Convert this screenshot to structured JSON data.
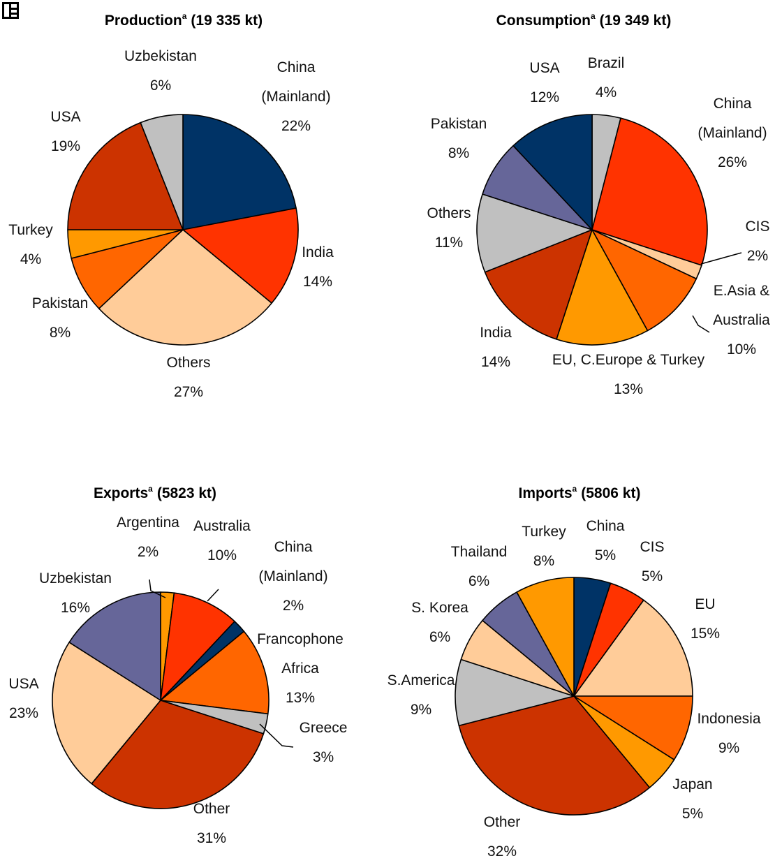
{
  "chart_data": [
    {
      "type": "pie",
      "title": "Production",
      "title_superscript": "a",
      "title_total": "(19 335 kt)",
      "slices": [
        {
          "name": "China (Mainland)",
          "label_lines": [
            "China",
            "(Mainland)"
          ],
          "pct_text": "22%",
          "value": 22,
          "color": "#003366"
        },
        {
          "name": "India",
          "label_lines": [
            "India"
          ],
          "pct_text": "14%",
          "value": 14,
          "color": "#ff3300"
        },
        {
          "name": "Others",
          "label_lines": [
            "Others"
          ],
          "pct_text": "27%",
          "value": 27,
          "color": "#ffcc99"
        },
        {
          "name": "Pakistan",
          "label_lines": [
            "Pakistan"
          ],
          "pct_text": "8%",
          "value": 8,
          "color": "#ff6600"
        },
        {
          "name": "Turkey",
          "label_lines": [
            "Turkey"
          ],
          "pct_text": "4%",
          "value": 4,
          "color": "#ff9900"
        },
        {
          "name": "USA",
          "label_lines": [
            "USA"
          ],
          "pct_text": "19%",
          "value": 19,
          "color": "#cc3300"
        },
        {
          "name": "Uzbekistan",
          "label_lines": [
            "Uzbekistan"
          ],
          "pct_text": "6%",
          "value": 6,
          "color": "#c0c0c0"
        }
      ]
    },
    {
      "type": "pie",
      "title": "Consumption",
      "title_superscript": "a",
      "title_total": "(19 349 kt)",
      "slices": [
        {
          "name": "Brazil",
          "label_lines": [
            "Brazil"
          ],
          "pct_text": "4%",
          "value": 4,
          "color": "#c0c0c0"
        },
        {
          "name": "China (Mainland)",
          "label_lines": [
            "China",
            "(Mainland)"
          ],
          "pct_text": "26%",
          "value": 26,
          "color": "#ff3300"
        },
        {
          "name": "CIS",
          "label_lines": [
            "CIS"
          ],
          "pct_text": "2%",
          "value": 2,
          "color": "#ffcc99"
        },
        {
          "name": "E.Asia & Australia",
          "label_lines": [
            "E.Asia &",
            "Australia"
          ],
          "pct_text": "10%",
          "value": 10,
          "color": "#ff6600"
        },
        {
          "name": "EU, C.Europe & Turkey",
          "label_lines": [
            "EU, C.Europe & Turkey"
          ],
          "pct_text": "13%",
          "value": 13,
          "color": "#ff9900"
        },
        {
          "name": "India",
          "label_lines": [
            "India"
          ],
          "pct_text": "14%",
          "value": 14,
          "color": "#cc3300"
        },
        {
          "name": "Others",
          "label_lines": [
            "Others"
          ],
          "pct_text": "11%",
          "value": 11,
          "color": "#c0c0c0"
        },
        {
          "name": "Pakistan",
          "label_lines": [
            "Pakistan"
          ],
          "pct_text": "8%",
          "value": 8,
          "color": "#666699"
        },
        {
          "name": "USA",
          "label_lines": [
            "USA"
          ],
          "pct_text": "12%",
          "value": 12,
          "color": "#003366"
        }
      ]
    },
    {
      "type": "pie",
      "title": "Exports",
      "title_superscript": "a",
      "title_total": "(5823 kt)",
      "slices": [
        {
          "name": "Argentina",
          "label_lines": [
            "Argentina"
          ],
          "pct_text": "2%",
          "value": 2,
          "color": "#ff9900"
        },
        {
          "name": "Australia",
          "label_lines": [
            "Australia"
          ],
          "pct_text": "10%",
          "value": 10,
          "color": "#ff3300"
        },
        {
          "name": "China (Mainland)",
          "label_lines": [
            "China",
            "(Mainland)"
          ],
          "pct_text": "2%",
          "value": 2,
          "color": "#003366"
        },
        {
          "name": "Francophone Africa",
          "label_lines": [
            "Francophone",
            "Africa"
          ],
          "pct_text": "13%",
          "value": 13,
          "color": "#ff6600"
        },
        {
          "name": "Greece",
          "label_lines": [
            "Greece"
          ],
          "pct_text": "3%",
          "value": 3,
          "color": "#c0c0c0"
        },
        {
          "name": "Other",
          "label_lines": [
            "Other"
          ],
          "pct_text": "31%",
          "value": 31,
          "color": "#cc3300"
        },
        {
          "name": "USA",
          "label_lines": [
            "USA"
          ],
          "pct_text": "23%",
          "value": 23,
          "color": "#ffcc99"
        },
        {
          "name": "Uzbekistan",
          "label_lines": [
            "Uzbekistan"
          ],
          "pct_text": "16%",
          "value": 16,
          "color": "#666699"
        }
      ]
    },
    {
      "type": "pie",
      "title": "Imports",
      "title_superscript": "a",
      "title_total": "(5806 kt)",
      "slices": [
        {
          "name": "China",
          "label_lines": [
            "China"
          ],
          "pct_text": "5%",
          "value": 5,
          "color": "#003366"
        },
        {
          "name": "CIS",
          "label_lines": [
            "CIS"
          ],
          "pct_text": "5%",
          "value": 5,
          "color": "#ff3300"
        },
        {
          "name": "EU",
          "label_lines": [
            "EU"
          ],
          "pct_text": "15%",
          "value": 15,
          "color": "#ffcc99"
        },
        {
          "name": "Indonesia",
          "label_lines": [
            "Indonesia"
          ],
          "pct_text": "9%",
          "value": 9,
          "color": "#ff6600"
        },
        {
          "name": "Japan",
          "label_lines": [
            "Japan"
          ],
          "pct_text": "5%",
          "value": 5,
          "color": "#ff9900"
        },
        {
          "name": "Other",
          "label_lines": [
            "Other"
          ],
          "pct_text": "32%",
          "value": 32,
          "color": "#cc3300"
        },
        {
          "name": "S.America",
          "label_lines": [
            "S.America"
          ],
          "pct_text": "9%",
          "value": 9,
          "color": "#c0c0c0"
        },
        {
          "name": "S. Korea",
          "label_lines": [
            "S. Korea"
          ],
          "pct_text": "6%",
          "value": 6,
          "color": "#ffcc99"
        },
        {
          "name": "Thailand",
          "label_lines": [
            "Thailand"
          ],
          "pct_text": "6%",
          "value": 6,
          "color": "#666699"
        },
        {
          "name": "Turkey",
          "label_lines": [
            "Turkey"
          ],
          "pct_text": "8%",
          "value": 8,
          "color": "#ff9900"
        }
      ]
    }
  ]
}
